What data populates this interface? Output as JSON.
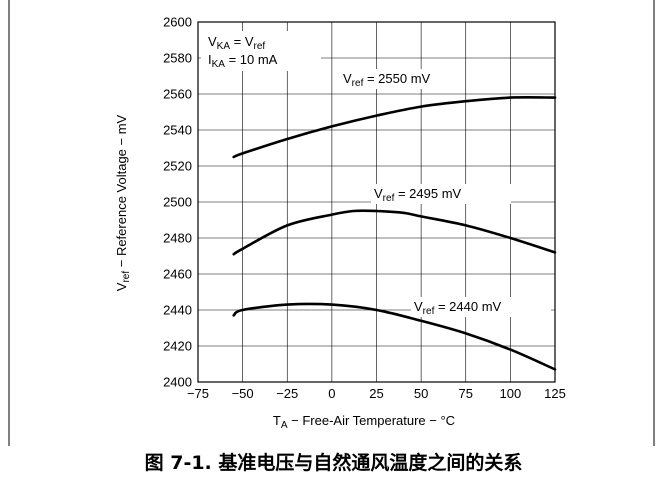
{
  "figure": {
    "caption": "图 7-1. 基准电压与自然通风温度之间的关系"
  },
  "chart_data": {
    "type": "line",
    "xlabel": {
      "main": "T",
      "sub": "A",
      "rest": " − Free-Air Temperature − °C"
    },
    "ylabel": {
      "main": "V",
      "sub": "ref",
      "rest": " − Reference Voltage − mV"
    },
    "xlim": [
      -75,
      125
    ],
    "ylim": [
      2400,
      2600
    ],
    "x_ticks": [
      -75,
      -50,
      -25,
      0,
      25,
      50,
      75,
      100,
      125
    ],
    "y_ticks": [
      2400,
      2420,
      2440,
      2460,
      2480,
      2500,
      2520,
      2540,
      2560,
      2580,
      2600
    ],
    "grid": true,
    "conditions": [
      {
        "main": "V",
        "sub": "KA",
        "rest": " = V",
        "sub2": "ref"
      },
      {
        "main": "I",
        "sub": "KA",
        "rest": " = 10 mA",
        "sub2": ""
      }
    ],
    "series": [
      {
        "name": "V_ref = 2550 mV",
        "label": {
          "main": "V",
          "sub": "ref",
          "rest": " = 2550 mV"
        },
        "x": [
          -55,
          -50,
          -25,
          0,
          25,
          50,
          75,
          100,
          125
        ],
        "y": [
          2525,
          2527,
          2535,
          2542,
          2548,
          2553,
          2556,
          2558,
          2558
        ]
      },
      {
        "name": "V_ref = 2495 mV",
        "label": {
          "main": "V",
          "sub": "ref",
          "rest": " = 2495 mV"
        },
        "x": [
          -55,
          -50,
          -25,
          0,
          12,
          25,
          40,
          50,
          75,
          100,
          125
        ],
        "y": [
          2471,
          2474,
          2487,
          2493,
          2495,
          2495,
          2494,
          2492,
          2487,
          2480,
          2472
        ]
      },
      {
        "name": "V_ref = 2440 mV",
        "label": {
          "main": "V",
          "sub": "ref",
          "rest": " = 2440 mV"
        },
        "x": [
          -55,
          -50,
          -25,
          0,
          25,
          50,
          75,
          100,
          125
        ],
        "y": [
          2437,
          2440,
          2443,
          2443,
          2440,
          2434,
          2427,
          2418,
          2407
        ]
      }
    ]
  }
}
